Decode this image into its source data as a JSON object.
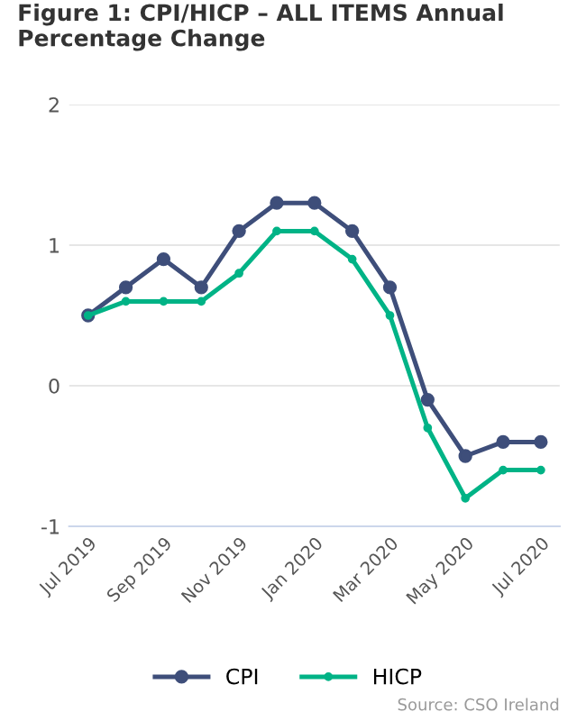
{
  "chart_data": {
    "type": "line",
    "title": "Figure 1: CPI/HICP – ALL ITEMS Annual Percentage Change",
    "categories": [
      "Jul 2019",
      null,
      "Sep 2019",
      null,
      "Nov 2019",
      null,
      "Jan 2020",
      null,
      "Mar 2020",
      null,
      "May 2020",
      null,
      "Jul 2020"
    ],
    "series": [
      {
        "name": "CPI",
        "color": "#3e4e7a",
        "values": [
          0.5,
          0.7,
          0.9,
          0.7,
          1.1,
          1.3,
          1.3,
          1.1,
          0.7,
          -0.1,
          -0.5,
          -0.4,
          -0.4
        ]
      },
      {
        "name": "HICP",
        "color": "#00b386",
        "values": [
          0.5,
          0.6,
          0.6,
          0.6,
          0.8,
          1.1,
          1.1,
          0.9,
          0.5,
          -0.3,
          -0.8,
          -0.6,
          -0.6
        ]
      }
    ],
    "ylim": [
      -1,
      2
    ],
    "yticks": [
      -1,
      0,
      1,
      2
    ],
    "grid": "y",
    "legend": "bottom",
    "marker": "circle",
    "line_style": "solid",
    "annotations": [
      "Source: CSO Ireland"
    ]
  }
}
